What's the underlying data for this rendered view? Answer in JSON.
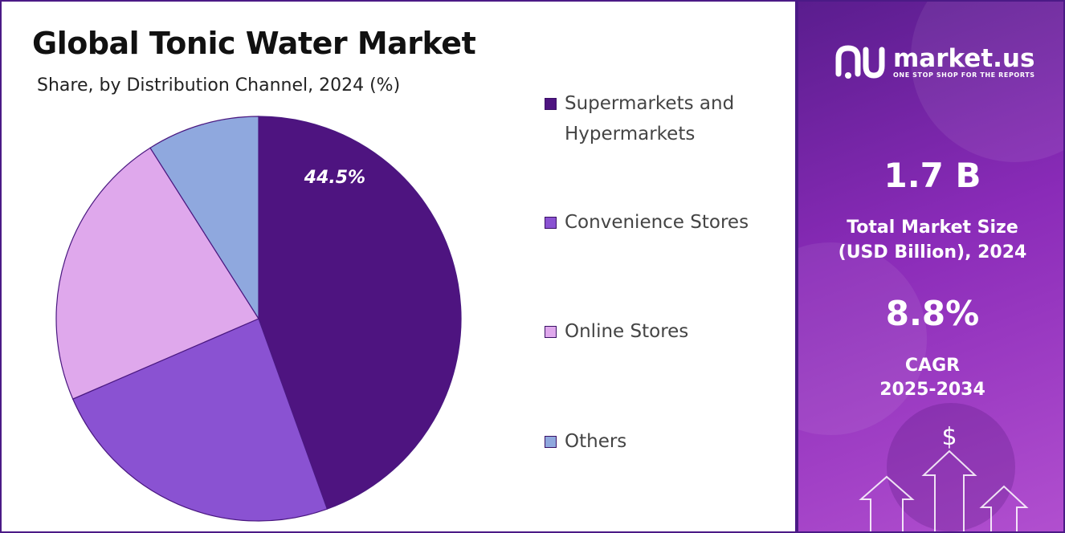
{
  "chart_data": {
    "type": "pie",
    "title": "Global Tonic Water Market",
    "subtitle": "Share, by Distribution Channel, 2024 (%)",
    "categories": [
      "Supermarkets and Hypermarkets",
      "Convenience Stores",
      "Online Stores",
      "Others"
    ],
    "values": [
      44.5,
      24.0,
      22.5,
      9.0
    ],
    "colors": [
      "#4e1480",
      "#8a52d2",
      "#dfa8ec",
      "#8fa8de"
    ],
    "data_labels": [
      "44.5%",
      "",
      "",
      ""
    ],
    "legend_position": "right"
  },
  "legend": {
    "items": [
      {
        "label": "Supermarkets and Hypermarkets",
        "color": "#4e1480"
      },
      {
        "label": "Convenience Stores",
        "color": "#8a52d2"
      },
      {
        "label": "Online Stores",
        "color": "#dfa8ec"
      },
      {
        "label": "Others",
        "color": "#8fa8de"
      }
    ]
  },
  "brand": {
    "name": "market.us",
    "tagline": "ONE STOP SHOP FOR THE REPORTS"
  },
  "stats": {
    "market_size_value": "1.7 B",
    "market_size_label_line1": "Total Market Size",
    "market_size_label_line2": "(USD Billion), 2024",
    "cagr_value": "8.8%",
    "cagr_label_line1": "CAGR",
    "cagr_label_line2": "2025-2034"
  },
  "decoration": {
    "currency_symbol": "$"
  }
}
